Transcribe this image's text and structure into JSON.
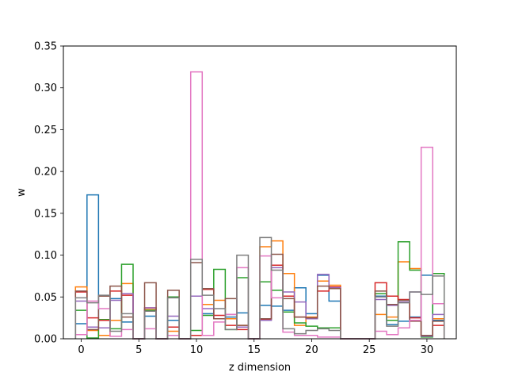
{
  "chart_data": {
    "type": "step",
    "xlabel": "z dimension",
    "ylabel": "w",
    "xlim": [
      -1.55,
      32.55
    ],
    "ylim": [
      0,
      0.35
    ],
    "xticks": [
      0,
      5,
      10,
      15,
      20,
      25,
      30
    ],
    "yticks": [
      0.0,
      0.05,
      0.1,
      0.15,
      0.2,
      0.25,
      0.3,
      0.35
    ],
    "ytick_labels": [
      "0.00",
      "0.05",
      "0.10",
      "0.15",
      "0.20",
      "0.25",
      "0.30",
      "0.35"
    ],
    "x": [
      0,
      1,
      2,
      3,
      4,
      5,
      6,
      7,
      8,
      9,
      10,
      11,
      12,
      13,
      14,
      15,
      16,
      17,
      18,
      19,
      20,
      21,
      22,
      23,
      24,
      25,
      26,
      27,
      28,
      29,
      30,
      31
    ],
    "series": [
      {
        "color": "#1f77b4",
        "values": [
          0.018,
          0.172,
          0.022,
          0.048,
          0.02,
          0.0,
          0.027,
          0.0,
          0.022,
          0.0,
          0.004,
          0.03,
          0.024,
          0.026,
          0.031,
          0.0,
          0.04,
          0.039,
          0.034,
          0.061,
          0.03,
          0.076,
          0.045,
          0.0,
          0.0,
          0.0,
          0.051,
          0.017,
          0.021,
          0.026,
          0.076,
          0.022
        ]
      },
      {
        "color": "#ff7f0e",
        "values": [
          0.062,
          0.01,
          0.004,
          0.022,
          0.066,
          0.0,
          0.035,
          0.0,
          0.009,
          0.0,
          0.004,
          0.041,
          0.046,
          0.024,
          0.016,
          0.0,
          0.11,
          0.117,
          0.078,
          0.016,
          0.026,
          0.069,
          0.064,
          0.0,
          0.0,
          0.0,
          0.029,
          0.026,
          0.092,
          0.084,
          0.004,
          0.024
        ]
      },
      {
        "color": "#2ca02c",
        "values": [
          0.034,
          0.001,
          0.023,
          0.012,
          0.089,
          0.0,
          0.034,
          0.0,
          0.05,
          0.0,
          0.01,
          0.028,
          0.083,
          0.011,
          0.073,
          0.0,
          0.068,
          0.058,
          0.032,
          0.019,
          0.015,
          0.013,
          0.013,
          0.0,
          0.0,
          0.0,
          0.054,
          0.022,
          0.116,
          0.082,
          0.002,
          0.078
        ]
      },
      {
        "color": "#d62728",
        "values": [
          0.056,
          0.025,
          0.022,
          0.057,
          0.052,
          0.0,
          0.037,
          0.0,
          0.014,
          0.0,
          0.004,
          0.059,
          0.028,
          0.016,
          0.011,
          0.0,
          0.023,
          0.088,
          0.051,
          0.026,
          0.025,
          0.057,
          0.062,
          0.0,
          0.0,
          0.0,
          0.067,
          0.051,
          0.047,
          0.025,
          0.004,
          0.016
        ]
      },
      {
        "color": "#9467bd",
        "values": [
          0.045,
          0.014,
          0.013,
          0.046,
          0.054,
          0.0,
          0.037,
          0.0,
          0.027,
          0.0,
          0.051,
          0.036,
          0.024,
          0.029,
          0.014,
          0.0,
          0.022,
          0.085,
          0.056,
          0.044,
          0.024,
          0.077,
          0.061,
          0.0,
          0.0,
          0.0,
          0.047,
          0.04,
          0.044,
          0.056,
          0.003,
          0.029
        ]
      },
      {
        "color": "#8c564b",
        "values": [
          0.057,
          0.011,
          0.051,
          0.063,
          0.026,
          0.0,
          0.067,
          0.0,
          0.058,
          0.0,
          0.091,
          0.06,
          0.024,
          0.048,
          0.016,
          0.0,
          0.024,
          0.101,
          0.048,
          0.026,
          0.025,
          0.063,
          0.06,
          0.0,
          0.0,
          0.0,
          0.057,
          0.041,
          0.046,
          0.021,
          0.004,
          0.021
        ]
      },
      {
        "color": "#e377c2",
        "values": [
          0.005,
          0.045,
          0.036,
          0.003,
          0.011,
          0.0,
          0.012,
          0.0,
          0.004,
          0.0,
          0.319,
          0.004,
          0.02,
          0.029,
          0.085,
          0.0,
          0.099,
          0.049,
          0.008,
          0.004,
          0.004,
          0.002,
          0.002,
          0.0,
          0.0,
          0.0,
          0.009,
          0.005,
          0.013,
          0.022,
          0.229,
          0.042
        ]
      },
      {
        "color": "#7f7f7f",
        "values": [
          0.049,
          0.043,
          0.052,
          0.009,
          0.03,
          0.0,
          0.033,
          0.0,
          0.049,
          0.0,
          0.095,
          0.052,
          0.036,
          0.011,
          0.1,
          0.0,
          0.121,
          0.082,
          0.012,
          0.006,
          0.01,
          0.012,
          0.01,
          0.0,
          0.0,
          0.0,
          0.05,
          0.015,
          0.043,
          0.056,
          0.053,
          0.075
        ]
      }
    ]
  }
}
